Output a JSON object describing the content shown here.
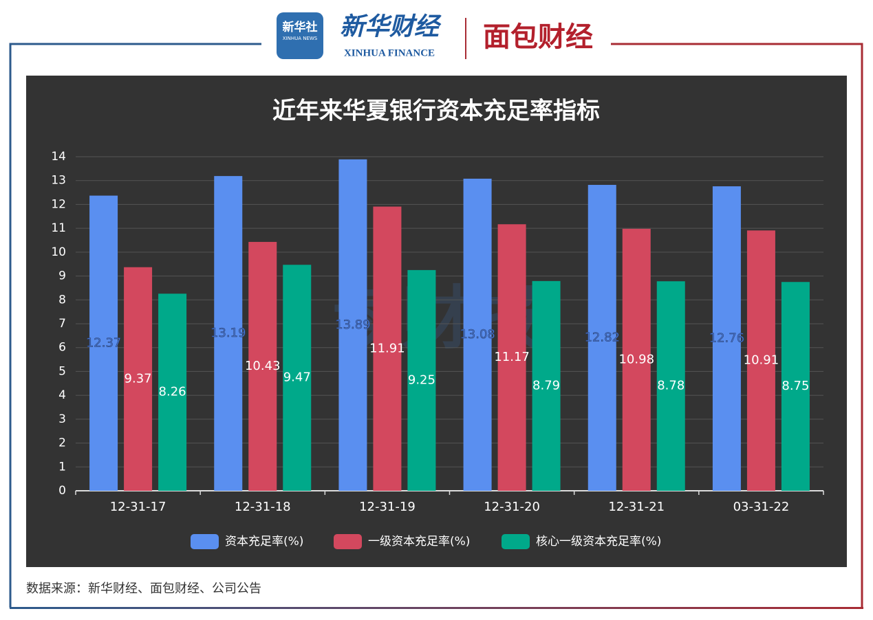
{
  "header": {
    "xinhua_news_cn": "新华社",
    "xinhua_news_en": "XINHUA NEWS",
    "xinhua_finance_cn": "新华财经",
    "xinhua_finance_en": "XINHUA FINANCE",
    "mianbao": "面包财经"
  },
  "chart_data": {
    "type": "bar",
    "title": "近年来华夏银行资本充足率指标",
    "watermark": "读财报",
    "categories": [
      "12-31-17",
      "12-31-18",
      "12-31-19",
      "12-31-20",
      "12-31-21",
      "03-31-22"
    ],
    "series": [
      {
        "name": "资本充足率(%)",
        "color": "#5a8ff0",
        "values": [
          12.37,
          13.19,
          13.89,
          13.08,
          12.82,
          12.76
        ]
      },
      {
        "name": "一级资本充足率(%)",
        "color": "#d3485e",
        "values": [
          9.37,
          10.43,
          11.91,
          11.17,
          10.98,
          10.91
        ]
      },
      {
        "name": "核心一级资本充足率(%)",
        "color": "#00a98a",
        "values": [
          8.26,
          9.47,
          9.25,
          8.79,
          8.78,
          8.75
        ]
      }
    ],
    "ylim": [
      0,
      14
    ],
    "yticks": [
      0,
      1,
      2,
      3,
      4,
      5,
      6,
      7,
      8,
      9,
      10,
      11,
      12,
      13,
      14
    ],
    "grid": true,
    "legend": "bottom"
  },
  "footer": {
    "source": "数据来源：新华财经、面包财经、公司公告"
  }
}
